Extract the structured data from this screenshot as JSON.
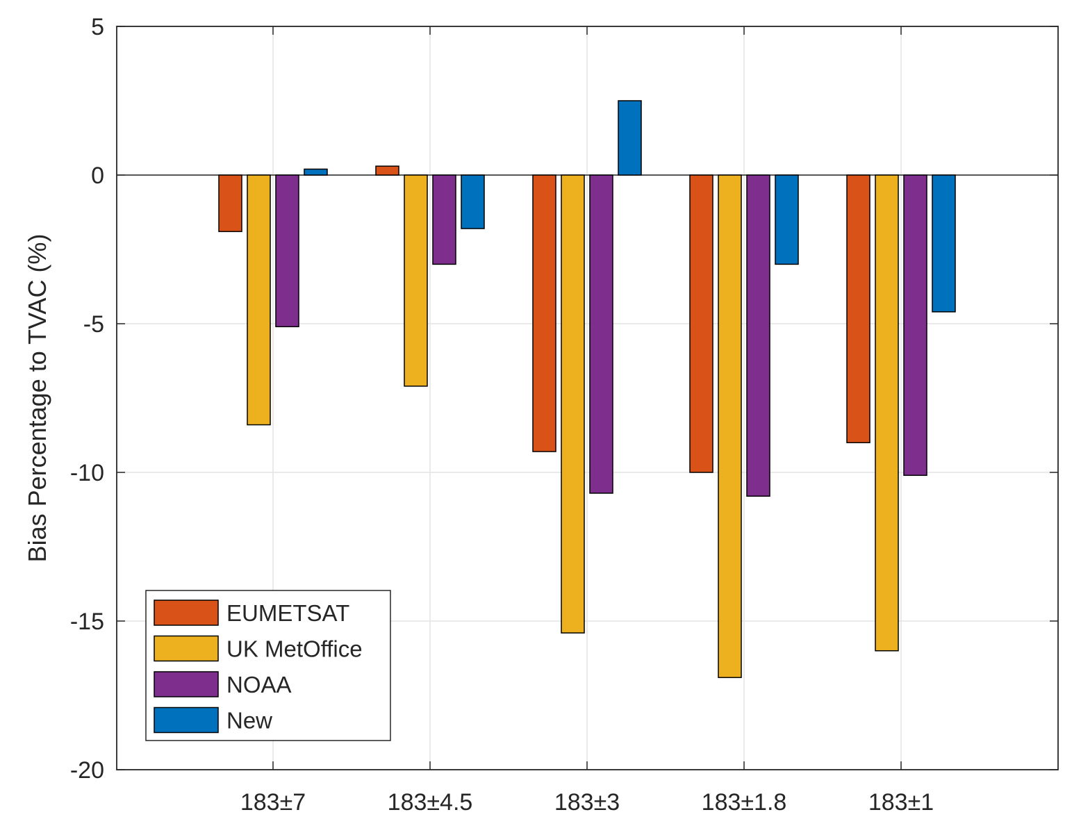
{
  "chart_data": {
    "type": "bar",
    "title": "",
    "xlabel": "",
    "ylabel": "Bias Percentage to TVAC (%)",
    "categories": [
      "183±7",
      "183±4.5",
      "183±3",
      "183±1.8",
      "183±1"
    ],
    "ylim": [
      -20,
      5
    ],
    "yticks": [
      5,
      0,
      -5,
      -10,
      -15,
      -20
    ],
    "grid": true,
    "legend_position": "bottom-left",
    "series": [
      {
        "name": "EUMETSAT",
        "color": "#D95319",
        "values": [
          -1.9,
          0.3,
          -9.3,
          -10.0,
          -9.0
        ]
      },
      {
        "name": "UK MetOffice",
        "color": "#EDB120",
        "values": [
          -8.4,
          -7.1,
          -15.4,
          -16.9,
          -16.0
        ]
      },
      {
        "name": "NOAA",
        "color": "#7E2F8E",
        "values": [
          -5.1,
          -3.0,
          -10.7,
          -10.8,
          -10.1
        ]
      },
      {
        "name": "New",
        "color": "#0072BD",
        "values": [
          0.2,
          -1.8,
          2.5,
          -3.0,
          -4.6
        ]
      }
    ]
  }
}
